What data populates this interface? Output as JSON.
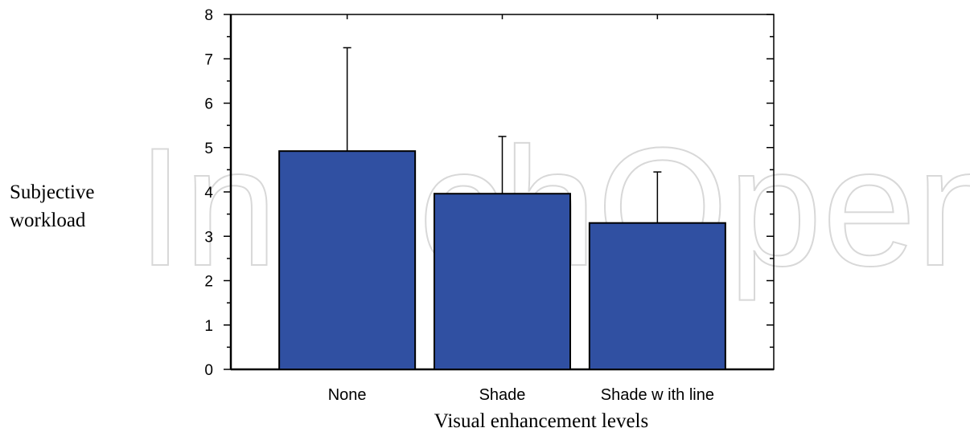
{
  "watermark": "IntechOpen",
  "chart_data": {
    "type": "bar",
    "categories": [
      "None",
      "Shade",
      "Shade w ith line"
    ],
    "values": [
      4.92,
      3.96,
      3.3
    ],
    "error_upper": [
      7.25,
      5.25,
      4.45
    ],
    "ylim": [
      0,
      8
    ],
    "yticks": [
      "0",
      "1",
      "2",
      "3",
      "4",
      "5",
      "6",
      "7",
      "8"
    ],
    "xlabel": "Visual enhancement levels",
    "ylabel_lines": [
      "Subjective",
      "workload"
    ],
    "bar_color": "#3050a2",
    "grid": false
  }
}
